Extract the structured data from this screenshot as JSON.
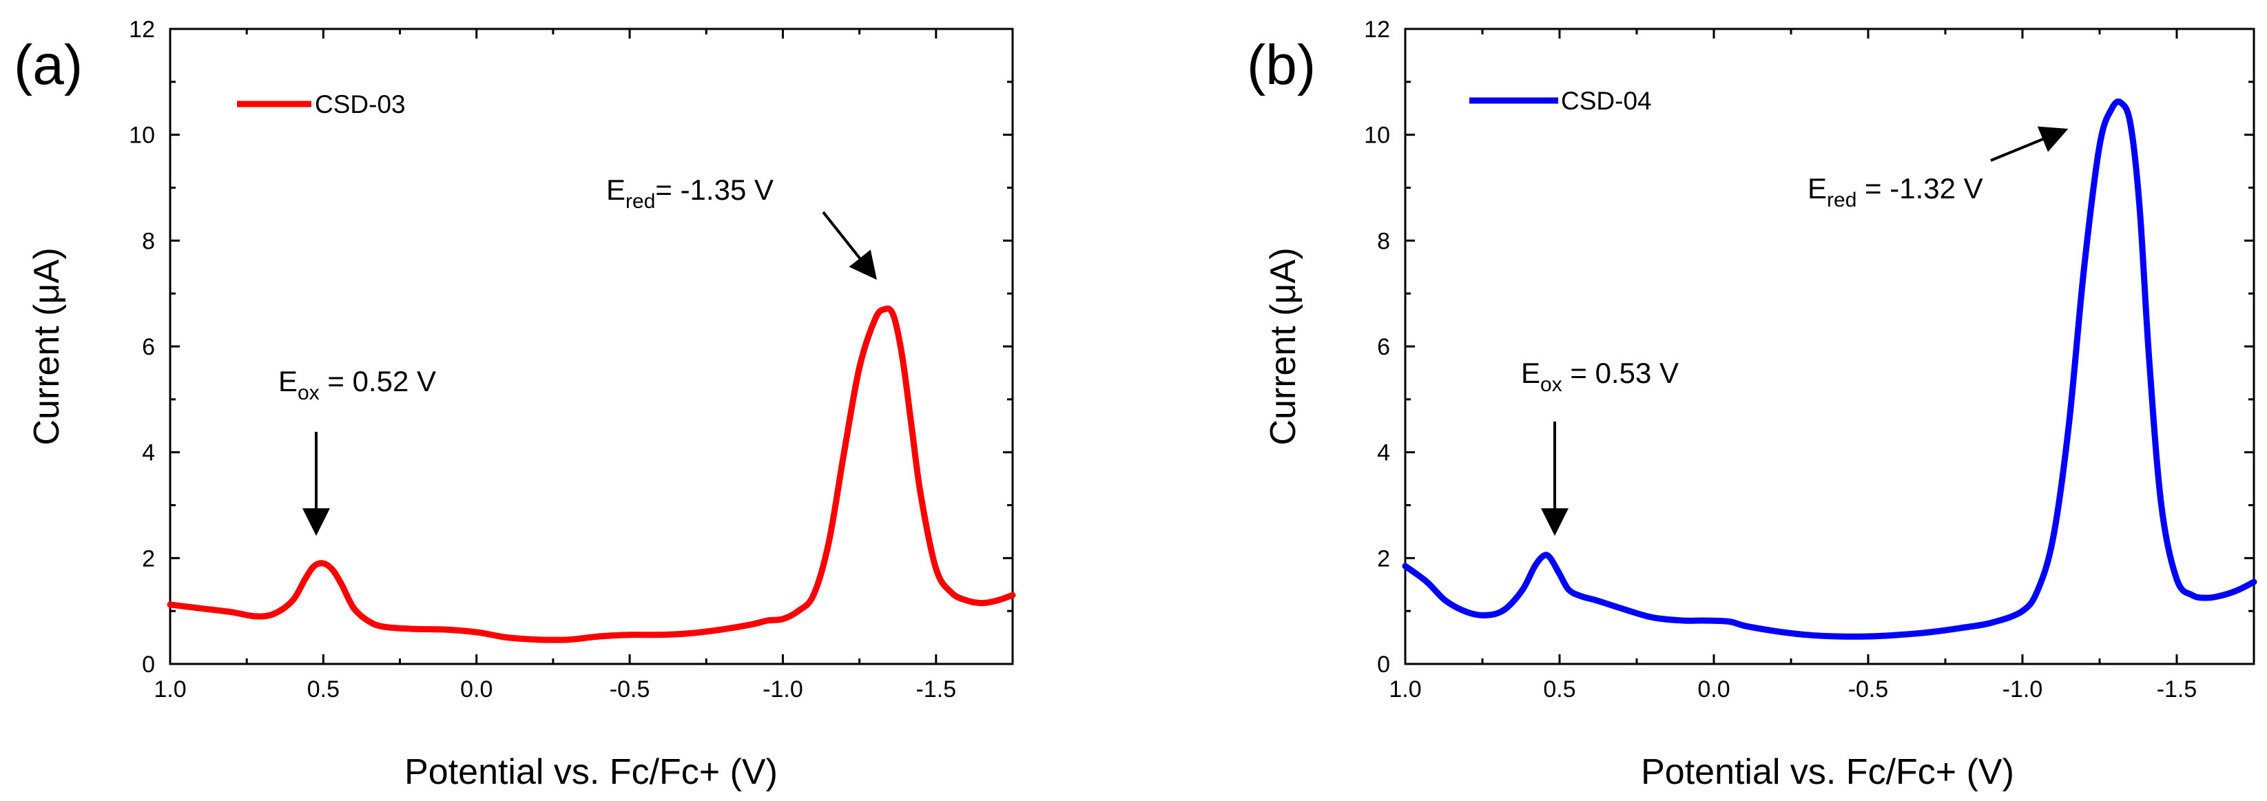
{
  "chart_data": [
    {
      "panel_label": "(a)",
      "type": "line",
      "xlabel": "Potential vs. Fc/Fc+ (V)",
      "ylabel": "Current (μA)",
      "xlim": [
        1.0,
        -1.75
      ],
      "ylim": [
        0,
        12
      ],
      "xticks": [
        1.0,
        0.5,
        0.0,
        -0.5,
        -1.0,
        -1.5
      ],
      "xtick_labels": [
        "1.0",
        "0.5",
        "0.0",
        "-0.5",
        "-1.0",
        "-1.5"
      ],
      "yticks": [
        0,
        2,
        4,
        6,
        8,
        10,
        12
      ],
      "ytick_labels": [
        "0",
        "2",
        "4",
        "6",
        "8",
        "10",
        "12"
      ],
      "grid": false,
      "legend_position": "top-left",
      "series": [
        {
          "name": "CSD-03",
          "color": "#ff0000",
          "x": [
            1.0,
            0.9,
            0.8,
            0.72,
            0.66,
            0.6,
            0.56,
            0.53,
            0.5,
            0.47,
            0.44,
            0.4,
            0.35,
            0.3,
            0.2,
            0.1,
            0.0,
            -0.05,
            -0.1,
            -0.2,
            -0.3,
            -0.4,
            -0.5,
            -0.6,
            -0.7,
            -0.8,
            -0.9,
            -0.95,
            -1.0,
            -1.05,
            -1.1,
            -1.15,
            -1.2,
            -1.25,
            -1.3,
            -1.33,
            -1.36,
            -1.39,
            -1.42,
            -1.45,
            -1.5,
            -1.55,
            -1.6,
            -1.65,
            -1.7,
            -1.75
          ],
          "y": [
            1.12,
            1.05,
            0.98,
            0.9,
            0.95,
            1.2,
            1.6,
            1.85,
            1.9,
            1.78,
            1.5,
            1.05,
            0.8,
            0.7,
            0.66,
            0.65,
            0.6,
            0.55,
            0.5,
            0.46,
            0.46,
            0.52,
            0.55,
            0.55,
            0.58,
            0.65,
            0.75,
            0.82,
            0.85,
            1.0,
            1.3,
            2.3,
            4.0,
            5.6,
            6.5,
            6.7,
            6.6,
            5.8,
            4.5,
            3.2,
            1.8,
            1.35,
            1.2,
            1.15,
            1.2,
            1.3
          ]
        }
      ],
      "annotations": [
        {
          "main": "E",
          "sub": "ox",
          "rest": " = 0.52 V"
        },
        {
          "main": "E",
          "sub": "red",
          "rest": "= -1.35 V"
        }
      ]
    },
    {
      "panel_label": "(b)",
      "type": "line",
      "xlabel": "Potential vs. Fc/Fc+ (V)",
      "ylabel": "Current (μA)",
      "xlim": [
        1.0,
        -1.75
      ],
      "ylim": [
        0,
        12
      ],
      "xticks": [
        1.0,
        0.5,
        0.0,
        -0.5,
        -1.0,
        -1.5
      ],
      "xtick_labels": [
        "1.0",
        "0.5",
        "0.0",
        "-0.5",
        "-1.0",
        "-1.5"
      ],
      "yticks": [
        0,
        2,
        4,
        6,
        8,
        10,
        12
      ],
      "ytick_labels": [
        "0",
        "2",
        "4",
        "6",
        "8",
        "10",
        "12"
      ],
      "grid": false,
      "legend_position": "top-left",
      "series": [
        {
          "name": "CSD-04",
          "color": "#0000ff",
          "x": [
            1.0,
            0.93,
            0.87,
            0.8,
            0.74,
            0.68,
            0.62,
            0.58,
            0.55,
            0.53,
            0.5,
            0.47,
            0.43,
            0.38,
            0.3,
            0.2,
            0.1,
            0.03,
            -0.05,
            -0.1,
            -0.2,
            -0.3,
            -0.4,
            -0.5,
            -0.6,
            -0.7,
            -0.8,
            -0.9,
            -1.0,
            -1.05,
            -1.1,
            -1.15,
            -1.2,
            -1.25,
            -1.29,
            -1.32,
            -1.35,
            -1.38,
            -1.41,
            -1.45,
            -1.5,
            -1.55,
            -1.6,
            -1.65,
            -1.7,
            -1.75
          ],
          "y": [
            1.85,
            1.55,
            1.2,
            0.98,
            0.92,
            1.02,
            1.4,
            1.85,
            2.05,
            2.0,
            1.7,
            1.4,
            1.28,
            1.2,
            1.05,
            0.88,
            0.82,
            0.82,
            0.8,
            0.72,
            0.62,
            0.55,
            0.52,
            0.52,
            0.55,
            0.6,
            0.68,
            0.78,
            1.0,
            1.4,
            2.4,
            4.5,
            7.5,
            9.8,
            10.5,
            10.6,
            10.2,
            8.6,
            5.8,
            3.0,
            1.6,
            1.3,
            1.25,
            1.3,
            1.4,
            1.55
          ]
        }
      ],
      "annotations": [
        {
          "main": "E",
          "sub": "ox",
          "rest": " = 0.53 V"
        },
        {
          "main": "E",
          "sub": "red",
          "rest": " = -1.32 V"
        }
      ]
    }
  ]
}
